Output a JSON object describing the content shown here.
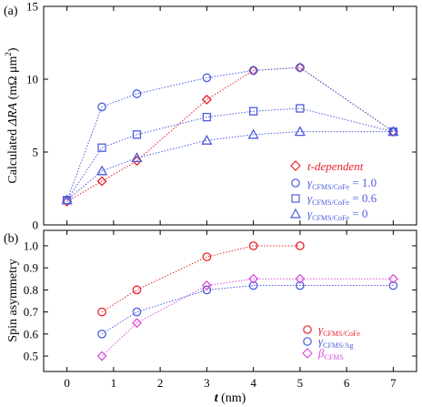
{
  "chart_data": [
    {
      "type": "line",
      "panel_label": "(a)",
      "ylabel_parts": [
        "Calculated ",
        "ΔRA",
        " (mΩ μm",
        "2",
        ")"
      ],
      "xlim": [
        -0.5,
        7.5
      ],
      "ylim": [
        0,
        15
      ],
      "x_ticks": [
        0,
        1,
        2,
        3,
        4,
        5,
        6,
        7
      ],
      "y_ticks": [
        0,
        5,
        10,
        15
      ],
      "grid": false,
      "legend_position": "bottom-right",
      "series": [
        {
          "name": "t-dependent",
          "color": "#e8222a",
          "marker": "diamond",
          "line": "dotted",
          "x": [
            0,
            0.75,
            1.5,
            3,
            4,
            5,
            7
          ],
          "y": [
            1.6,
            3.0,
            4.4,
            8.6,
            10.6,
            10.8,
            6.4
          ]
        },
        {
          "name_parts": [
            "γ",
            "CFMS/CoFe",
            " = 1.0"
          ],
          "color": "#4a5de0",
          "marker": "circle",
          "line": "dotted",
          "x": [
            0,
            0.75,
            1.5,
            3,
            4,
            5,
            7
          ],
          "y": [
            1.7,
            8.1,
            9.0,
            10.1,
            10.6,
            10.8,
            6.4
          ]
        },
        {
          "name_parts": [
            "γ",
            "CFMS/CoFe",
            " = 0.6"
          ],
          "color": "#4a5de0",
          "marker": "square",
          "line": "dotted",
          "x": [
            0,
            0.75,
            1.5,
            3,
            4,
            5,
            7
          ],
          "y": [
            1.7,
            5.3,
            6.2,
            7.4,
            7.8,
            8.0,
            6.4
          ]
        },
        {
          "name_parts": [
            "γ",
            "CFMS/CoFe",
            " = 0"
          ],
          "color": "#4a5de0",
          "marker": "triangle",
          "line": "dotted",
          "x": [
            0,
            0.75,
            1.5,
            3,
            4,
            5,
            7
          ],
          "y": [
            1.7,
            3.7,
            4.6,
            5.8,
            6.2,
            6.4,
            6.4
          ]
        }
      ]
    },
    {
      "type": "line",
      "panel_label": "(b)",
      "ylabel": "Spin asymmetry",
      "xlabel_parts": [
        "t",
        " (nm)"
      ],
      "xlim": [
        -0.5,
        7.5
      ],
      "ylim": [
        0.43,
        1.07
      ],
      "x_ticks": [
        0,
        1,
        2,
        3,
        4,
        5,
        6,
        7
      ],
      "y_ticks": [
        0.5,
        0.6,
        0.7,
        0.8,
        0.9,
        1.0
      ],
      "y_tick_labels": [
        "0.5",
        "0.6",
        "0.7",
        "0.8",
        "0.9",
        "1.0"
      ],
      "grid": false,
      "legend_position": "bottom-right",
      "series": [
        {
          "name_parts": [
            "γ",
            "CFMS/CoFe"
          ],
          "color": "#e8222a",
          "marker": "circle",
          "line": "dotted",
          "x": [
            0.75,
            1.5,
            3,
            4,
            5
          ],
          "y": [
            0.7,
            0.8,
            0.95,
            1.0,
            1.0
          ]
        },
        {
          "name_parts": [
            "γ",
            "CFMS/Ag"
          ],
          "color": "#4a5de0",
          "marker": "circle",
          "line": "dotted",
          "x": [
            0.75,
            1.5,
            3,
            4,
            5,
            7
          ],
          "y": [
            0.6,
            0.7,
            0.8,
            0.82,
            0.82,
            0.82
          ]
        },
        {
          "name_parts": [
            "β",
            "CFMS"
          ],
          "color": "#d94fd9",
          "marker": "diamond",
          "line": "dotted",
          "x": [
            0.75,
            1.5,
            3,
            4,
            5,
            7
          ],
          "y": [
            0.5,
            0.65,
            0.82,
            0.85,
            0.85,
            0.85
          ]
        }
      ]
    }
  ]
}
